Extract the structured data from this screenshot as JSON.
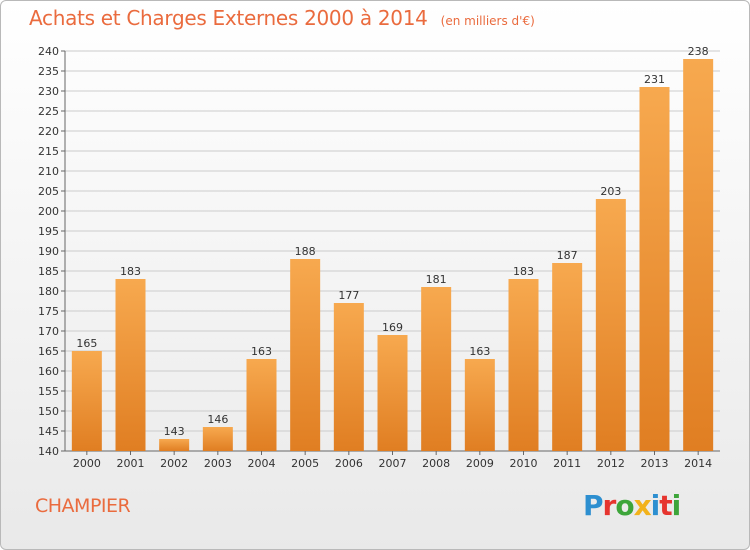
{
  "header": {
    "title": "Achats et Charges Externes 2000 à 2014",
    "unit": "(en milliers d'€)"
  },
  "footer": {
    "commune": "CHAMPIER",
    "logo_text": "Proxiti"
  },
  "colors": {
    "accent": "#ea6b3e",
    "bar_light": "#f7a94f",
    "bar_dark": "#e07e22",
    "grid": "#cccccc"
  },
  "chart_data": {
    "type": "bar",
    "title": "Achats et Charges Externes 2000 à 2014",
    "subtitle": "(en milliers d'€)",
    "xlabel": "",
    "ylabel": "",
    "categories": [
      "2000",
      "2001",
      "2002",
      "2003",
      "2004",
      "2005",
      "2006",
      "2007",
      "2008",
      "2009",
      "2010",
      "2011",
      "2012",
      "2013",
      "2014"
    ],
    "values": [
      165,
      183,
      143,
      146,
      163,
      188,
      177,
      169,
      181,
      163,
      183,
      187,
      203,
      231,
      238
    ],
    "ylim": [
      140,
      240
    ],
    "yticks": [
      140,
      145,
      150,
      155,
      160,
      165,
      170,
      175,
      180,
      185,
      190,
      195,
      200,
      205,
      210,
      215,
      220,
      225,
      230,
      235,
      240
    ],
    "grid": true,
    "legend": "none"
  }
}
